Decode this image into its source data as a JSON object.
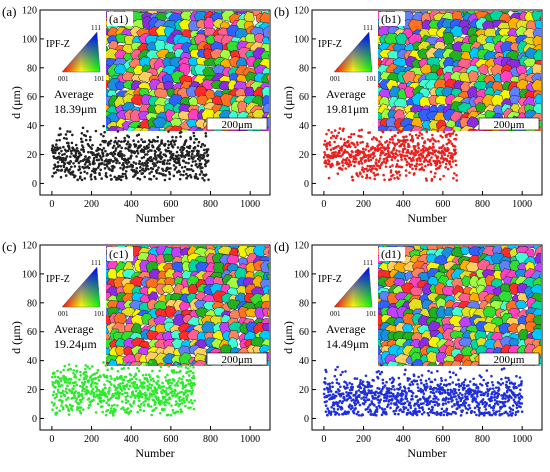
{
  "colors": {
    "panel_a": "#222222",
    "panel_b": "#e8201e",
    "panel_c": "#2bea2b",
    "panel_d": "#1f2fd8"
  },
  "inset_legend": {
    "title": "IPF-Z",
    "corner_top": "111",
    "corner_left": "001",
    "corner_right": "101"
  },
  "scale_bar_label": "200μm",
  "chart_data": [
    {
      "type": "scatter",
      "panel_label": "(a)",
      "inset_label": "(a1)",
      "average_label": "Average",
      "average_value": "18.39μm",
      "xlabel": "Number",
      "ylabel": "d (μm)",
      "xlim": [
        -60,
        1100
      ],
      "ylim": [
        -8,
        120
      ],
      "xticks": [
        "0",
        "200",
        "400",
        "600",
        "800",
        "1000"
      ],
      "yticks": [
        "0",
        "20",
        "40",
        "60",
        "80",
        "100",
        "120"
      ],
      "color": "#222222",
      "n_points": 790,
      "y_range": [
        2,
        40
      ],
      "y_mean": 18.39
    },
    {
      "type": "scatter",
      "panel_label": "(b)",
      "inset_label": "(b1)",
      "average_label": "Average",
      "average_value": "19.81μm",
      "xlabel": "Number",
      "ylabel": "d (μm)",
      "xlim": [
        -60,
        1100
      ],
      "ylim": [
        -8,
        120
      ],
      "xticks": [
        "0",
        "200",
        "400",
        "600",
        "800",
        "1000"
      ],
      "yticks": [
        "0",
        "20",
        "40",
        "60",
        "80",
        "100",
        "120"
      ],
      "color": "#e8201e",
      "n_points": 670,
      "y_range": [
        2,
        38
      ],
      "y_mean": 19.81
    },
    {
      "type": "scatter",
      "panel_label": "(c)",
      "inset_label": "(c1)",
      "average_label": "Average",
      "average_value": "19.24μm",
      "xlabel": "Number",
      "ylabel": "d (μm)",
      "xlim": [
        -60,
        1100
      ],
      "ylim": [
        -8,
        120
      ],
      "xticks": [
        "0",
        "200",
        "400",
        "600",
        "800",
        "1000"
      ],
      "yticks": [
        "0",
        "20",
        "40",
        "60",
        "80",
        "100",
        "120"
      ],
      "color": "#2bea2b",
      "n_points": 720,
      "y_range": [
        2,
        40
      ],
      "y_mean": 19.24
    },
    {
      "type": "scatter",
      "panel_label": "(d)",
      "inset_label": "(d1)",
      "average_label": "Average",
      "average_value": "14.49μm",
      "xlabel": "Number",
      "ylabel": "d (μm)",
      "xlim": [
        -60,
        1100
      ],
      "ylim": [
        -8,
        120
      ],
      "xticks": [
        "0",
        "200",
        "400",
        "600",
        "800",
        "1000"
      ],
      "yticks": [
        "0",
        "20",
        "40",
        "60",
        "80",
        "100",
        "120"
      ],
      "color": "#1f2fd8",
      "n_points": 1000,
      "y_range": [
        2,
        38
      ],
      "y_mean": 14.49
    }
  ]
}
